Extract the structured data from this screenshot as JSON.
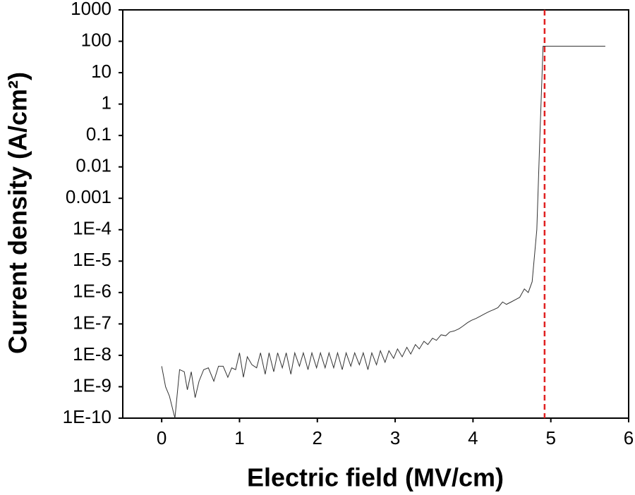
{
  "chart_data": {
    "type": "line",
    "x_label": "Electric field (MV/cm)",
    "y_label": "Current density (A/cm²)",
    "xlim": [
      -0.5,
      6
    ],
    "xticks": [
      0,
      1,
      2,
      3,
      4,
      5,
      6
    ],
    "ylim": [
      1e-10,
      1000
    ],
    "log_y": true,
    "yticks": [
      1000,
      100,
      10,
      1,
      0.1,
      0.01,
      0.001,
      {
        "value": 0.0001,
        "label": "1E-4"
      },
      {
        "value": 1e-05,
        "label": "1E-5"
      },
      {
        "value": 1e-06,
        "label": "1E-6"
      },
      {
        "value": 1e-07,
        "label": "1E-7"
      },
      {
        "value": 1e-08,
        "label": "1E-8"
      },
      {
        "value": 1e-09,
        "label": "1E-9"
      },
      {
        "value": 1e-10,
        "label": "1E-10"
      }
    ],
    "vline": {
      "x": 4.92,
      "color": "#e02020"
    },
    "series": [
      {
        "color": "#333333",
        "x": [
          0,
          0.05,
          0.1,
          0.17,
          0.23,
          0.29,
          0.33,
          0.38,
          0.43,
          0.48,
          0.54,
          0.6,
          0.67,
          0.73,
          0.79,
          0.85,
          0.9,
          0.95,
          1.0,
          1.05,
          1.1,
          1.16,
          1.22,
          1.27,
          1.33,
          1.38,
          1.44,
          1.49,
          1.55,
          1.6,
          1.66,
          1.71,
          1.77,
          1.82,
          1.88,
          1.93,
          1.99,
          2.04,
          2.1,
          2.15,
          2.21,
          2.26,
          2.32,
          2.37,
          2.43,
          2.48,
          2.54,
          2.59,
          2.65,
          2.7,
          2.76,
          2.81,
          2.87,
          2.92,
          2.98,
          3.03,
          3.09,
          3.15,
          3.2,
          3.26,
          3.31,
          3.37,
          3.42,
          3.48,
          3.53,
          3.59,
          3.65,
          3.7,
          3.76,
          3.82,
          3.87,
          3.93,
          3.98,
          4.04,
          4.1,
          4.15,
          4.21,
          4.26,
          4.32,
          4.38,
          4.43,
          4.49,
          4.55,
          4.6,
          4.66,
          4.71,
          4.76,
          4.82,
          4.86,
          4.9,
          5.7
        ],
        "values": [
          4.5e-09,
          1e-09,
          5e-10,
          1e-10,
          3.5e-09,
          3e-09,
          8e-10,
          3e-09,
          4.5e-10,
          1.5e-09,
          3.5e-09,
          4e-09,
          1.5e-09,
          4.5e-09,
          4.5e-09,
          2e-09,
          4e-09,
          3.5e-09,
          1.2e-08,
          2e-09,
          9e-09,
          5e-09,
          4e-09,
          1.2e-08,
          2.5e-09,
          1.2e-08,
          3e-09,
          1.2e-08,
          4e-09,
          1.2e-08,
          2.5e-09,
          1.2e-08,
          4.5e-09,
          1.2e-08,
          3.5e-09,
          1.2e-08,
          4e-09,
          1.2e-08,
          4e-09,
          1.2e-08,
          4e-09,
          1.2e-08,
          3.5e-09,
          1.2e-08,
          4.5e-09,
          1.2e-08,
          5e-09,
          1.2e-08,
          3.5e-09,
          1.2e-08,
          5e-09,
          1.4e-08,
          6e-09,
          1.4e-08,
          8e-09,
          1.6e-08,
          9e-09,
          1.8e-08,
          1.1e-08,
          2.2e-08,
          1.6e-08,
          2.8e-08,
          2.2e-08,
          3.5e-08,
          3e-08,
          4.5e-08,
          4.2e-08,
          5.5e-08,
          6e-08,
          7e-08,
          8.5e-08,
          1.1e-07,
          1.3e-07,
          1.5e-07,
          1.8e-07,
          2.1e-07,
          2.5e-07,
          2.8e-07,
          3.3e-07,
          5e-07,
          4.2e-07,
          5e-07,
          6e-07,
          7e-07,
          1.3e-06,
          1e-06,
          2.2e-06,
          0.0001,
          0.1,
          70,
          70
        ]
      }
    ]
  }
}
